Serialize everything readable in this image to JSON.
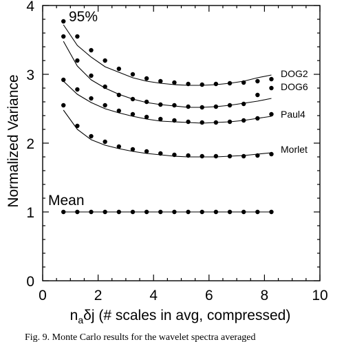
{
  "chart_data": {
    "type": "scatter",
    "title": "",
    "xlabel": "(# scales in avg, compressed)",
    "xlabel_prefix_main": "n",
    "xlabel_prefix_sub": "a",
    "xlabel_prefix_rest": "δj",
    "ylabel": "Normalized Variance",
    "xlim": [
      0,
      10
    ],
    "ylim": [
      0,
      4
    ],
    "xticks": [
      0,
      2,
      4,
      6,
      8,
      10
    ],
    "yticks": [
      0,
      1,
      2,
      3,
      4
    ],
    "grid": false,
    "annotations": [
      "95%"
    ],
    "x": [
      0.75,
      1.25,
      1.75,
      2.25,
      2.75,
      3.25,
      3.75,
      4.25,
      4.75,
      5.25,
      5.75,
      6.25,
      6.75,
      7.25,
      7.75,
      8.25
    ],
    "series": [
      {
        "name": "DOG2",
        "values": [
          3.77,
          3.55,
          3.35,
          3.2,
          3.08,
          3.0,
          2.94,
          2.9,
          2.88,
          2.86,
          2.85,
          2.86,
          2.87,
          2.88,
          2.9,
          2.93
        ],
        "curve": [
          3.72,
          3.42,
          3.25,
          3.11,
          3.03,
          2.95,
          2.9,
          2.87,
          2.85,
          2.84,
          2.84,
          2.85,
          2.87,
          2.9,
          2.95,
          2.99
        ]
      },
      {
        "name": "DOG6",
        "values": [
          3.55,
          3.2,
          2.98,
          2.82,
          2.7,
          2.64,
          2.6,
          2.56,
          2.55,
          2.53,
          2.52,
          2.53,
          2.55,
          2.57,
          2.7,
          2.8
        ],
        "curve": [
          3.48,
          3.12,
          2.92,
          2.8,
          2.71,
          2.64,
          2.59,
          2.56,
          2.54,
          2.52,
          2.52,
          2.53,
          2.55,
          2.58,
          2.61,
          2.65
        ]
      },
      {
        "name": "Paul4",
        "values": [
          2.92,
          2.78,
          2.65,
          2.55,
          2.47,
          2.42,
          2.38,
          2.35,
          2.33,
          2.31,
          2.3,
          2.3,
          2.31,
          2.33,
          2.36,
          2.42
        ],
        "curve": [
          2.9,
          2.71,
          2.59,
          2.5,
          2.44,
          2.39,
          2.35,
          2.32,
          2.31,
          2.3,
          2.29,
          2.3,
          2.31,
          2.33,
          2.36,
          2.39
        ]
      },
      {
        "name": "Morlet",
        "values": [
          2.55,
          2.25,
          2.1,
          2.02,
          1.95,
          1.91,
          1.88,
          1.85,
          1.83,
          1.82,
          1.81,
          1.81,
          1.81,
          1.81,
          1.82,
          1.84
        ],
        "curve": [
          2.48,
          2.2,
          2.05,
          1.97,
          1.92,
          1.88,
          1.85,
          1.83,
          1.81,
          1.8,
          1.8,
          1.8,
          1.81,
          1.82,
          1.84,
          1.86
        ]
      },
      {
        "name": "Mean",
        "values": [
          1,
          1,
          1,
          1,
          1,
          1,
          1,
          1,
          1,
          1,
          1,
          1,
          1,
          1,
          1,
          1
        ],
        "curve": [
          1,
          1,
          1,
          1,
          1,
          1,
          1,
          1,
          1,
          1,
          1,
          1,
          1,
          1,
          1,
          1
        ]
      }
    ]
  },
  "caption": "Fig. 9. Monte Carlo results for the wavelet spectra averaged"
}
